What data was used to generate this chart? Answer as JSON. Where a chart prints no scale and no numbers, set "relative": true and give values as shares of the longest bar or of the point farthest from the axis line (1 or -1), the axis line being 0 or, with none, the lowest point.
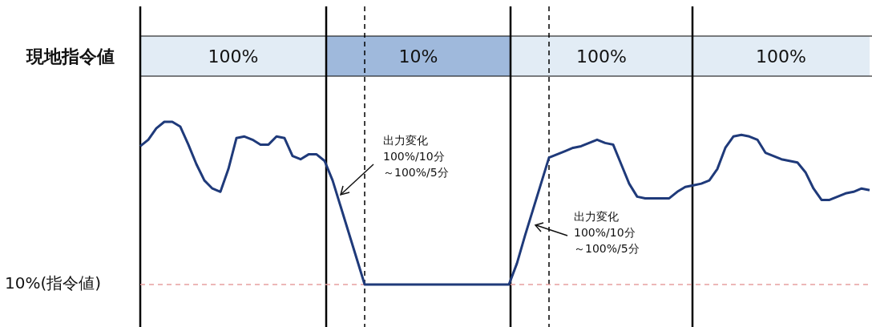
{
  "chart_data": {
    "type": "line",
    "relative": true,
    "grid": "x",
    "categories": [
      null,
      null,
      null,
      null,
      null,
      null,
      null,
      null,
      null,
      null,
      null,
      null,
      null,
      null,
      null,
      null,
      null,
      null,
      null,
      null,
      null,
      null,
      null,
      null,
      null,
      null,
      null,
      null,
      null,
      null,
      null,
      null,
      null,
      null,
      null,
      null,
      null,
      null,
      null,
      null,
      null,
      null,
      null,
      null,
      null,
      null,
      null,
      null,
      null,
      null,
      null,
      null,
      null,
      null,
      null,
      null,
      null,
      null,
      null,
      null,
      null,
      null,
      null,
      null,
      null,
      null,
      null,
      null,
      null,
      null,
      null,
      null,
      null,
      null,
      null,
      null,
      null,
      null,
      null,
      null,
      null,
      null,
      null,
      null,
      null,
      null,
      null,
      null,
      null,
      null,
      null,
      null
    ],
    "series": [
      {
        "color": "#1f3a7a",
        "values": [
          0.85,
          0.89,
          0.96,
          1,
          1,
          0.97,
          0.86,
          0.74,
          0.64,
          0.59,
          0.57,
          0.71,
          0.9,
          0.91,
          0.89,
          0.86,
          0.86,
          0.91,
          0.9,
          0.79,
          0.77,
          0.8,
          0.8,
          0.76,
          0.64,
          0.48,
          0.32,
          0.16,
          0,
          0,
          0,
          0,
          0,
          0,
          0,
          0,
          0,
          0,
          0,
          0,
          0,
          0,
          0,
          0,
          0,
          0,
          0,
          0.13,
          0.3,
          0.46,
          0.62,
          0.78,
          0.8,
          0.82,
          0.84,
          0.85,
          0.87,
          0.89,
          0.87,
          0.86,
          0.74,
          0.62,
          0.54,
          0.53,
          0.53,
          0.53,
          0.53,
          0.57,
          0.6,
          0.61,
          0.62,
          0.64,
          0.71,
          0.84,
          0.91,
          0.92,
          0.91,
          0.89,
          0.81,
          0.79,
          0.77,
          0.76,
          0.75,
          0.69,
          0.59,
          0.52,
          0.52,
          0.54,
          0.56,
          0.57,
          0.59,
          0.58
        ]
      }
    ],
    "ref_lines": [
      {
        "axis": "y",
        "value": 0,
        "label": "10%(指令値)",
        "color": "#e8a0a0",
        "line_style": "dashed"
      }
    ],
    "annotations": [
      "現地指令値",
      "100%",
      "10%",
      "100%",
      "100%",
      "出力変化",
      "100%/10分",
      "～100%/5分",
      "出力変化",
      "100%/10分",
      "～100%/5分"
    ]
  }
}
